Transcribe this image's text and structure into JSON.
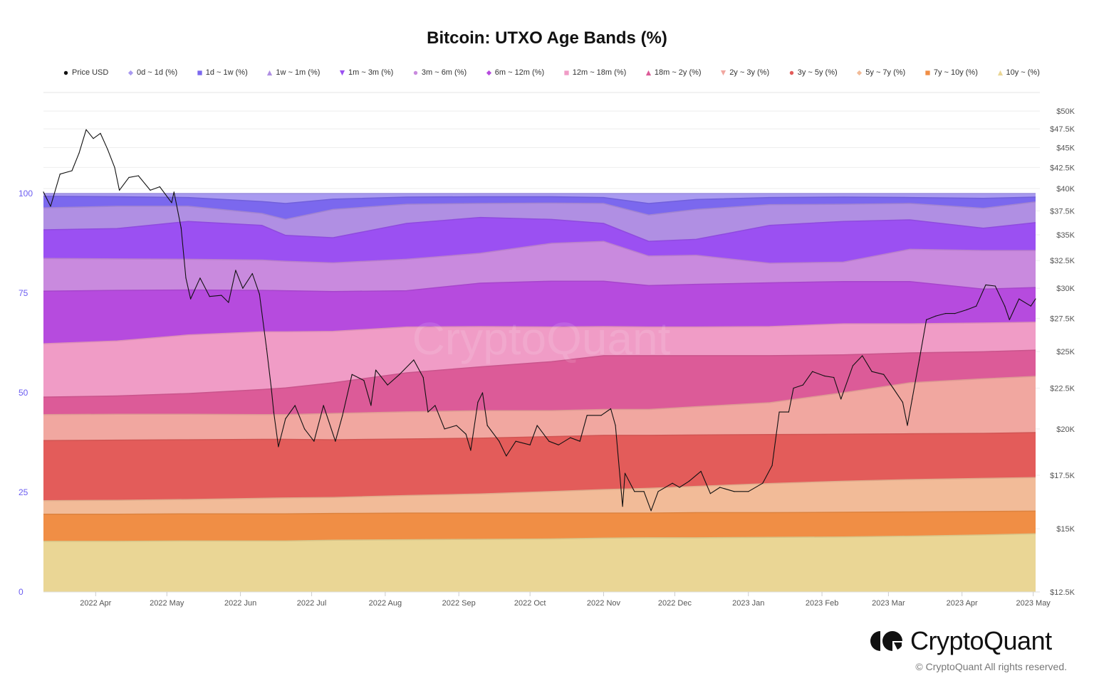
{
  "chart_data": {
    "type": "area",
    "stacked": true,
    "title": "Bitcoin: UTXO Age Bands (%)",
    "xlim": [
      "2022-03-10",
      "2023-05-02"
    ],
    "x_ticks": [
      "2022 Apr",
      "2022 May",
      "2022 Jun",
      "2022 Jul",
      "2022 Aug",
      "2022 Sep",
      "2022 Oct",
      "2022 Nov",
      "2022 Dec",
      "2023 Jan",
      "2023 Feb",
      "2023 Mar",
      "2023 Apr",
      "2023 May"
    ],
    "y_left": {
      "range": [
        0,
        100
      ],
      "ticks": [
        "0",
        "25",
        "50",
        "75",
        "100"
      ],
      "tick_values": [
        0,
        25,
        50,
        75,
        100
      ],
      "color": "#6b5cf0"
    },
    "y_right": {
      "scale": "log",
      "range": [
        12500,
        50000
      ],
      "tick_values": [
        12500,
        15000,
        17500,
        20000,
        22500,
        25000,
        27500,
        30000,
        32500,
        35000,
        37500,
        40000,
        42500,
        45000,
        47500,
        50000
      ],
      "ticks": [
        "$12.5K",
        "$15K",
        "$17.5K",
        "$20K",
        "$22.5K",
        "$25K",
        "$27.5K",
        "$30K",
        "$32.5K",
        "$35K",
        "$37.5K",
        "$40K",
        "$42.5K",
        "$45K",
        "$47.5K",
        "$50K"
      ]
    },
    "grid": true,
    "legend_position": "top",
    "band_dates": [
      "2022-03-10",
      "2022-04-10",
      "2022-05-10",
      "2022-06-10",
      "2022-06-20",
      "2022-07-10",
      "2022-08-10",
      "2022-09-10",
      "2022-10-10",
      "2022-11-01",
      "2022-11-20",
      "2022-12-10",
      "2023-01-10",
      "2023-02-10",
      "2023-03-10",
      "2023-04-10",
      "2023-05-02"
    ],
    "series": [
      {
        "name": "0d ~ 1d (%)",
        "color": "#a99af0",
        "marker": "diamond",
        "values": [
          0.7,
          0.8,
          1.0,
          2.0,
          2.5,
          1.4,
          0.9,
          0.8,
          0.8,
          1.0,
          2.5,
          1.5,
          1.0,
          0.9,
          1.0,
          1.2,
          0.9
        ]
      },
      {
        "name": "1d ~ 1w (%)",
        "color": "#7b68ee",
        "marker": "square",
        "values": [
          2.9,
          2.4,
          2.2,
          3.0,
          4.0,
          2.6,
          1.8,
          1.7,
          1.6,
          1.5,
          2.9,
          2.5,
          1.8,
          1.8,
          1.5,
          2.5,
          1.2
        ]
      },
      {
        "name": "1w ~ 1m (%)",
        "color": "#b08fe3",
        "marker": "triangle",
        "values": [
          5.5,
          5.6,
          3.8,
          3.0,
          4.0,
          7.1,
          4.8,
          3.5,
          4.1,
          5.0,
          6.6,
          7.5,
          5.2,
          4.3,
          4.1,
          5.0,
          5.2
        ]
      },
      {
        "name": "1m ~ 3m (%)",
        "color": "#9b50f2",
        "marker": "triangle-down",
        "values": [
          7.2,
          7.6,
          9.5,
          8.7,
          6.5,
          6.3,
          9.0,
          9.0,
          6.0,
          4.5,
          3.7,
          4.0,
          9.5,
          10.2,
          7.4,
          5.6,
          7.0
        ]
      },
      {
        "name": "3m ~ 6m (%)",
        "color": "#c98ade",
        "marker": "circle",
        "values": [
          8.2,
          7.9,
          7.7,
          7.6,
          7.4,
          7.2,
          7.9,
          7.5,
          9.5,
          10.0,
          7.4,
          7.3,
          4.9,
          4.9,
          8.1,
          9.7,
          9.3
        ]
      },
      {
        "name": "6m ~ 12m (%)",
        "color": "#b64bde",
        "marker": "diamond",
        "values": [
          13.2,
          12.7,
          11.3,
          10.4,
          10.3,
          10.0,
          9.1,
          10.9,
          11.5,
          11.4,
          10.4,
          10.7,
          11.0,
          10.6,
          10.6,
          8.5,
          8.7
        ]
      },
      {
        "name": "12m ~ 18m (%)",
        "color": "#f09cc6",
        "marker": "square",
        "values": [
          13.4,
          13.8,
          14.7,
          14.5,
          14.1,
          12.9,
          11.5,
          10.1,
          8.7,
          7.3,
          7.2,
          7.2,
          7.3,
          7.8,
          7.3,
          7.2,
          7.0
        ]
      },
      {
        "name": "18m ~ 2y (%)",
        "color": "#dc5b98",
        "marker": "triangle",
        "values": [
          4.4,
          4.6,
          5.2,
          6.3,
          6.7,
          7.7,
          9.8,
          11.0,
          12.3,
          13.5,
          13.5,
          12.8,
          11.8,
          9.5,
          7.5,
          6.8,
          6.6
        ]
      },
      {
        "name": "2y ~ 3y (%)",
        "color": "#f1a7a0",
        "marker": "triangle-down",
        "values": [
          6.5,
          6.5,
          6.4,
          6.2,
          6.2,
          6.6,
          6.8,
          6.9,
          6.5,
          6.5,
          6.5,
          7.1,
          8.0,
          10.4,
          12.8,
          13.7,
          14.1
        ]
      },
      {
        "name": "3y ~ 5y (%)",
        "color": "#e35c5a",
        "marker": "circle",
        "values": [
          15.1,
          15.1,
          15.0,
          14.8,
          14.7,
          14.5,
          14.2,
          14.0,
          13.8,
          13.6,
          13.3,
          12.9,
          12.3,
          11.8,
          11.5,
          11.3,
          11.3
        ]
      },
      {
        "name": "5y ~ 7y (%)",
        "color": "#f2bb98",
        "marker": "diamond",
        "values": [
          3.4,
          3.5,
          3.6,
          3.9,
          4.0,
          4.0,
          4.4,
          4.8,
          5.4,
          5.9,
          6.2,
          6.6,
          7.3,
          7.8,
          8.1,
          8.3,
          8.4
        ]
      },
      {
        "name": "7y ~ 10y (%)",
        "color": "#f08e45",
        "marker": "square",
        "values": [
          6.8,
          6.8,
          6.8,
          6.8,
          6.8,
          6.7,
          6.7,
          6.6,
          6.5,
          6.3,
          6.2,
          6.3,
          6.2,
          6.2,
          6.1,
          5.9,
          5.7
        ]
      },
      {
        "name": "10y ~ (%)",
        "color": "#ead695",
        "marker": "triangle",
        "values": [
          12.7,
          12.7,
          12.8,
          12.8,
          12.8,
          13.0,
          13.1,
          13.2,
          13.3,
          13.5,
          13.6,
          13.6,
          13.7,
          13.8,
          14.0,
          14.3,
          14.6
        ]
      }
    ],
    "price": {
      "name": "Price USD",
      "color": "#111111",
      "marker": "circle",
      "axis": "right",
      "dates": [
        "2022-03-10",
        "2022-03-13",
        "2022-03-17",
        "2022-03-22",
        "2022-03-25",
        "2022-03-28",
        "2022-03-31",
        "2022-04-03",
        "2022-04-06",
        "2022-04-09",
        "2022-04-11",
        "2022-04-15",
        "2022-04-19",
        "2022-04-24",
        "2022-04-28",
        "2022-05-03",
        "2022-05-04",
        "2022-05-07",
        "2022-05-09",
        "2022-05-11",
        "2022-05-15",
        "2022-05-19",
        "2022-05-24",
        "2022-05-27",
        "2022-05-30",
        "2022-06-02",
        "2022-06-06",
        "2022-06-09",
        "2022-06-12",
        "2022-06-14",
        "2022-06-15",
        "2022-06-17",
        "2022-06-20",
        "2022-06-24",
        "2022-06-28",
        "2022-07-02",
        "2022-07-06",
        "2022-07-11",
        "2022-07-14",
        "2022-07-18",
        "2022-07-23",
        "2022-07-26",
        "2022-07-28",
        "2022-08-02",
        "2022-08-07",
        "2022-08-13",
        "2022-08-17",
        "2022-08-19",
        "2022-08-22",
        "2022-08-26",
        "2022-08-31",
        "2022-09-04",
        "2022-09-06",
        "2022-09-09",
        "2022-09-11",
        "2022-09-13",
        "2022-09-18",
        "2022-09-21",
        "2022-09-25",
        "2022-10-01",
        "2022-10-04",
        "2022-10-09",
        "2022-10-13",
        "2022-10-18",
        "2022-10-22",
        "2022-10-25",
        "2022-10-31",
        "2022-11-04",
        "2022-11-06",
        "2022-11-09",
        "2022-11-10",
        "2022-11-14",
        "2022-11-18",
        "2022-11-21",
        "2022-11-24",
        "2022-11-30",
        "2022-12-03",
        "2022-12-07",
        "2022-12-12",
        "2022-12-16",
        "2022-12-20",
        "2022-12-26",
        "2023-01-01",
        "2023-01-07",
        "2023-01-11",
        "2023-01-14",
        "2023-01-18",
        "2023-01-20",
        "2023-01-24",
        "2023-01-28",
        "2023-02-02",
        "2023-02-06",
        "2023-02-09",
        "2023-02-14",
        "2023-02-18",
        "2023-02-22",
        "2023-02-27",
        "2023-03-03",
        "2023-03-07",
        "2023-03-09",
        "2023-03-11",
        "2023-03-14",
        "2023-03-17",
        "2023-03-21",
        "2023-03-25",
        "2023-03-29",
        "2023-04-03",
        "2023-04-07",
        "2023-04-11",
        "2023-04-15",
        "2023-04-19",
        "2023-04-21",
        "2023-04-25",
        "2023-04-30",
        "2023-05-02"
      ],
      "values": [
        39600,
        38000,
        41700,
        42100,
        44300,
        47400,
        46200,
        46900,
        44800,
        42500,
        39800,
        41300,
        41500,
        39800,
        40200,
        38400,
        39600,
        35700,
        30900,
        29100,
        30900,
        29300,
        29400,
        28800,
        31600,
        30000,
        31300,
        29500,
        25200,
        22500,
        21000,
        19000,
        20600,
        21400,
        20000,
        19300,
        21400,
        19300,
        20800,
        23400,
        23000,
        21400,
        23700,
        22700,
        23400,
        24400,
        23200,
        21000,
        21400,
        20000,
        20200,
        19700,
        18800,
        21600,
        22200,
        20200,
        19300,
        18500,
        19300,
        19100,
        20200,
        19300,
        19100,
        19500,
        19300,
        20800,
        20800,
        21200,
        20200,
        16000,
        17600,
        16700,
        16700,
        15800,
        16700,
        17100,
        16900,
        17200,
        17700,
        16600,
        16900,
        16700,
        16700,
        17100,
        18000,
        21000,
        21000,
        22500,
        22700,
        23600,
        23300,
        23200,
        21800,
        24000,
        24700,
        23600,
        23400,
        22500,
        21600,
        20200,
        21800,
        24400,
        27400,
        27700,
        27900,
        27900,
        28200,
        28500,
        30300,
        30200,
        28500,
        27400,
        29100,
        28500,
        29100
      ]
    }
  },
  "watermark": "CryptoQuant",
  "footer": {
    "brand": "CryptoQuant",
    "copyright": "© CryptoQuant All rights reserved."
  }
}
